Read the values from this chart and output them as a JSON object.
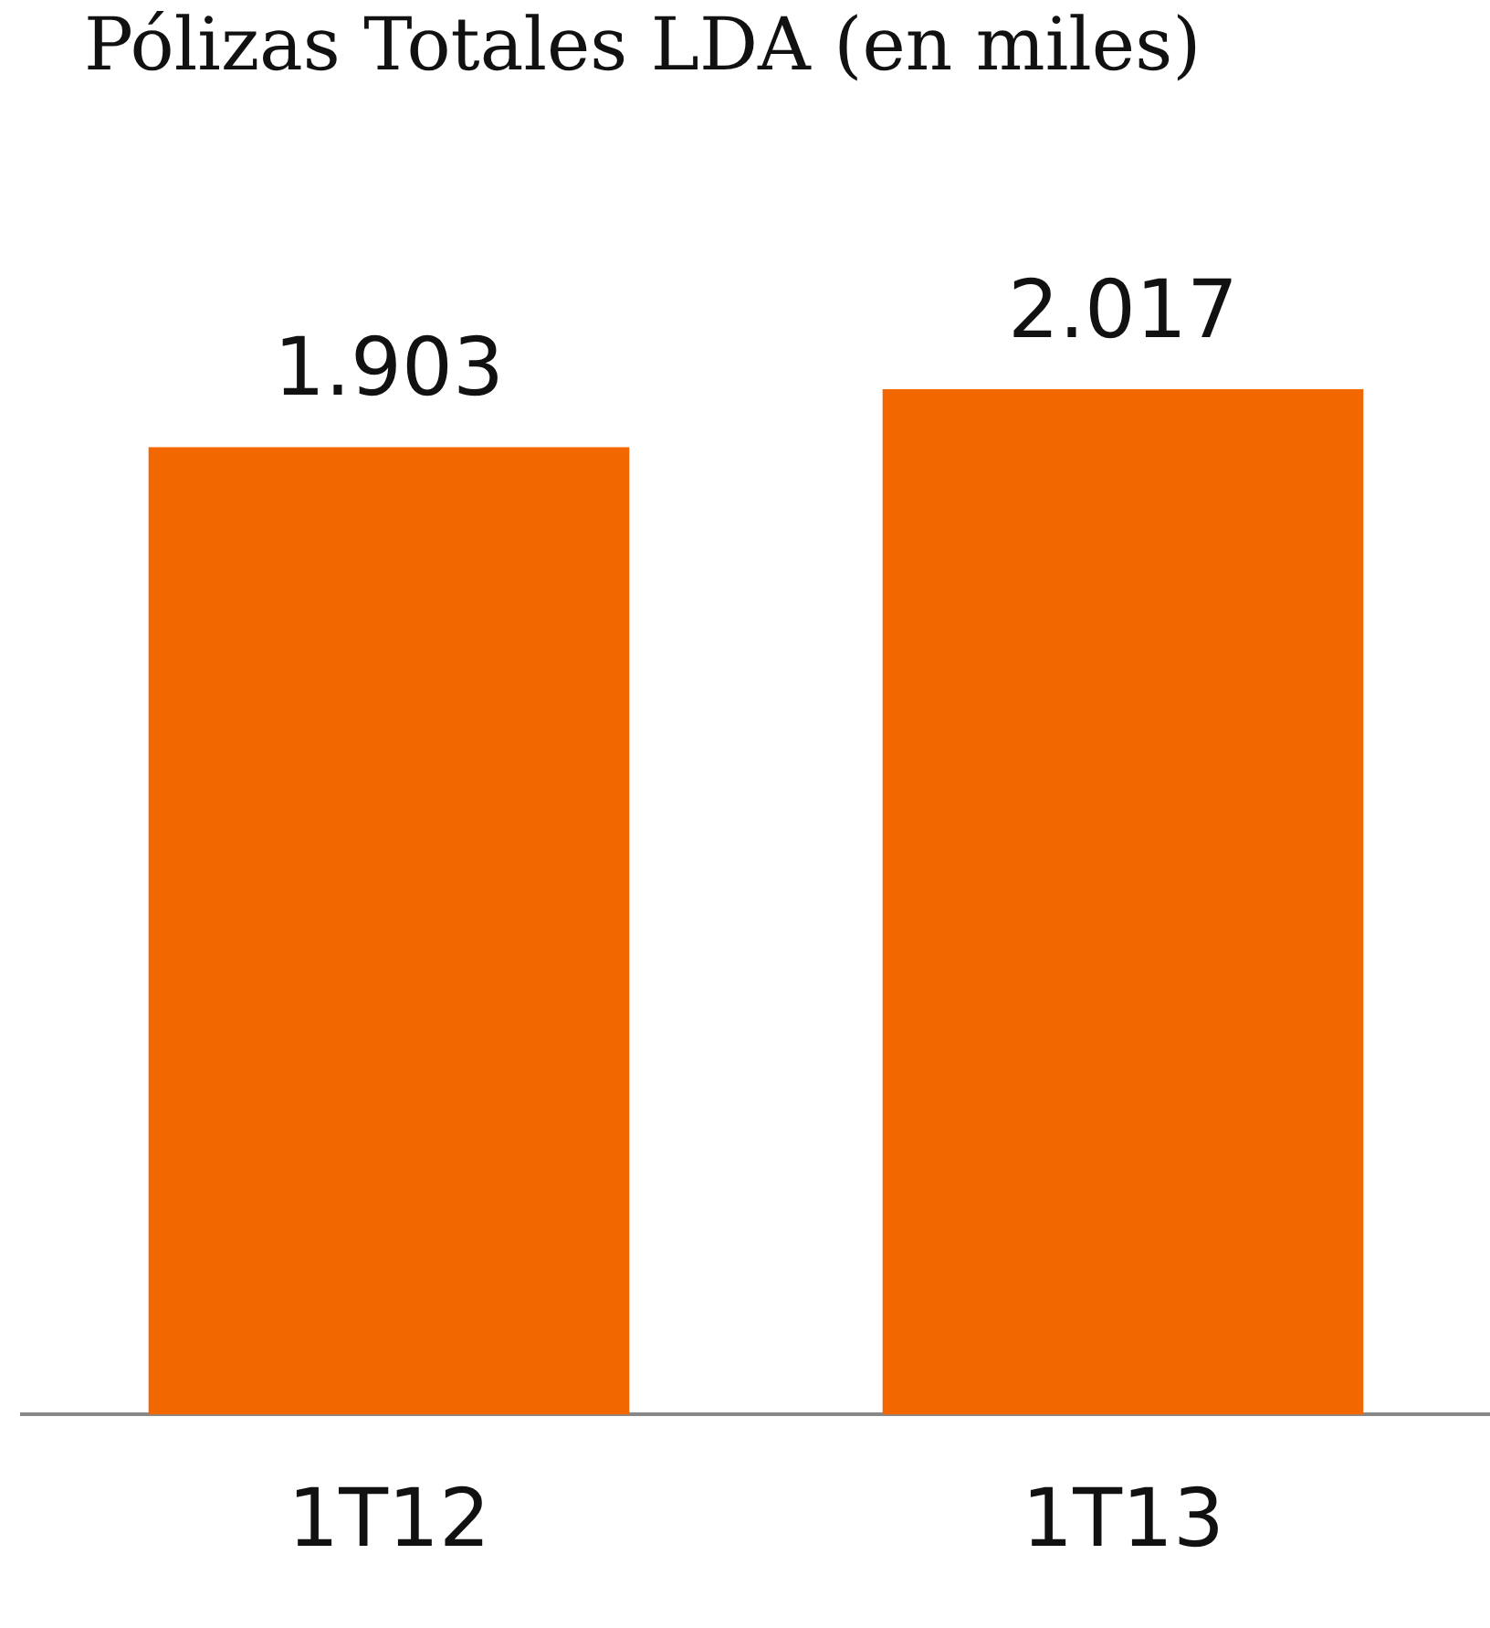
{
  "chart_data": {
    "type": "bar",
    "title": "Pólizas Totales LDA (en miles)",
    "categories": [
      "1T12",
      "1T13"
    ],
    "values": [
      1903,
      2017
    ],
    "value_labels": [
      "1.903",
      "2.017"
    ],
    "color": "#f26700"
  }
}
